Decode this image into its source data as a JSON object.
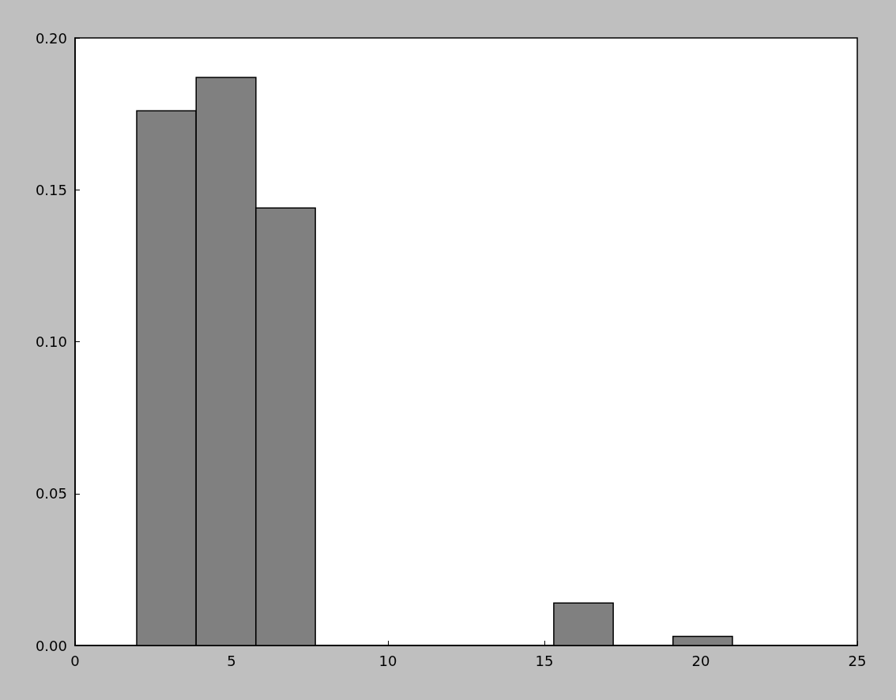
{
  "chart_data": {
    "type": "histogram",
    "bins": [
      1.97,
      3.87,
      5.78,
      7.68,
      9.59,
      11.49,
      13.39,
      15.3,
      17.2,
      19.11,
      21.01
    ],
    "values": [
      0.176,
      0.187,
      0.144,
      0,
      0,
      0,
      0,
      0.014,
      0,
      0.003
    ],
    "color": "#808080",
    "xlim": [
      0,
      25
    ],
    "xticks": [
      0,
      5,
      10,
      15,
      20,
      25
    ],
    "ylim": [
      0,
      0.2
    ],
    "yticks": [
      {
        "value": 0,
        "label": "0.00"
      },
      {
        "value": 0.05,
        "label": "0.05"
      },
      {
        "value": 0.1,
        "label": "0.10"
      },
      {
        "value": 0.15,
        "label": "0.15"
      },
      {
        "value": 0.2,
        "label": "0.20"
      }
    ],
    "grid": false
  }
}
